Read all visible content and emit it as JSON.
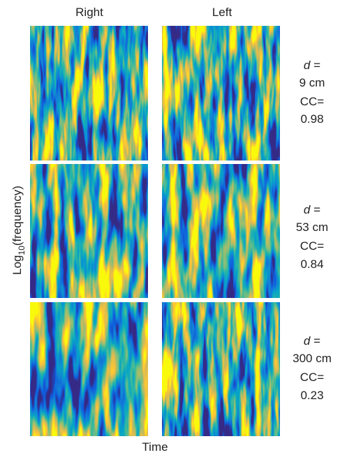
{
  "column_headers": [
    "Right",
    "Left"
  ],
  "y_label": {
    "prefix": "Log",
    "subscript": "10",
    "suffix": "(frequency)"
  },
  "x_label": "Time",
  "rows": [
    {
      "symbol": "d",
      "equals": "=",
      "distance": "9 cm",
      "cc_label": "CC=",
      "cc": 0.98
    },
    {
      "symbol": "d",
      "equals": "=",
      "distance": "53 cm",
      "cc_label": "CC=",
      "cc": 0.84
    },
    {
      "symbol": "d",
      "equals": "=",
      "distance": "300 cm",
      "cc_label": "CC=",
      "cc": 0.23
    }
  ]
}
